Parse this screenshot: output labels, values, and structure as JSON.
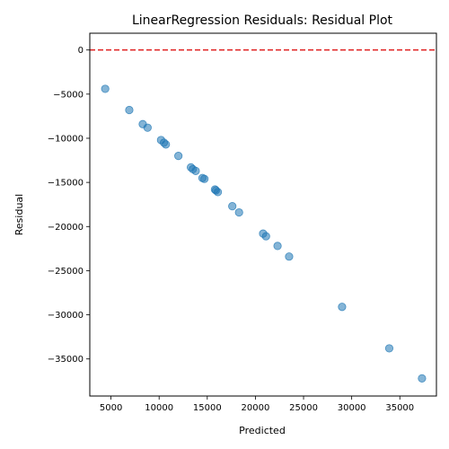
{
  "chart_data": {
    "type": "scatter",
    "title": "LinearRegression Residuals: Residual Plot",
    "xlabel": "Predicted",
    "ylabel": "Residual",
    "xlim": [
      2800,
      38800
    ],
    "ylim": [
      -39200,
      1900
    ],
    "xticks": [
      5000,
      10000,
      15000,
      20000,
      25000,
      30000,
      35000
    ],
    "xtick_labels": [
      "5000",
      "10000",
      "15000",
      "20000",
      "25000",
      "30000",
      "35000"
    ],
    "yticks": [
      0,
      -5000,
      -10000,
      -15000,
      -20000,
      -25000,
      -30000,
      -35000
    ],
    "ytick_labels": [
      "0",
      "−5000",
      "−10000",
      "−15000",
      "−20000",
      "−25000",
      "−30000",
      "−35000"
    ],
    "grid": false,
    "reference_line": {
      "y": 0,
      "style": "dashed",
      "color": "#e02020"
    },
    "marker_color": "#1f77b4",
    "marker_alpha": 0.55,
    "points": [
      {
        "x": 4400,
        "y": -4400
      },
      {
        "x": 6900,
        "y": -6800
      },
      {
        "x": 8300,
        "y": -8400
      },
      {
        "x": 8800,
        "y": -8800
      },
      {
        "x": 10200,
        "y": -10200
      },
      {
        "x": 10500,
        "y": -10500
      },
      {
        "x": 10700,
        "y": -10700
      },
      {
        "x": 12000,
        "y": -12000
      },
      {
        "x": 13300,
        "y": -13300
      },
      {
        "x": 13500,
        "y": -13500
      },
      {
        "x": 13800,
        "y": -13700
      },
      {
        "x": 14500,
        "y": -14500
      },
      {
        "x": 14700,
        "y": -14600
      },
      {
        "x": 15800,
        "y": -15800
      },
      {
        "x": 15900,
        "y": -15900
      },
      {
        "x": 16100,
        "y": -16100
      },
      {
        "x": 17600,
        "y": -17700
      },
      {
        "x": 18300,
        "y": -18400
      },
      {
        "x": 20800,
        "y": -20800
      },
      {
        "x": 21100,
        "y": -21100
      },
      {
        "x": 22300,
        "y": -22200
      },
      {
        "x": 23500,
        "y": -23400
      },
      {
        "x": 29000,
        "y": -29100
      },
      {
        "x": 33900,
        "y": -33800
      },
      {
        "x": 37300,
        "y": -37200
      }
    ]
  }
}
